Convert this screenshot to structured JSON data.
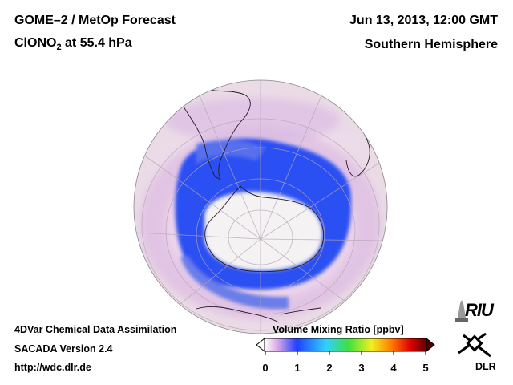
{
  "header": {
    "title_line1": "GOME–2 / MetOp Forecast",
    "species_prefix": "ClONO",
    "species_subscript": "2",
    "species_suffix": " at 55.4 hPa",
    "date": "Jun 13, 2013, 12:00 GMT",
    "region": "Southern Hemisphere"
  },
  "footer": {
    "line1": "4DVar Chemical Data Assimilation",
    "line2": "SACADA Version 2.4",
    "line3": "http://wdc.dlr.de"
  },
  "colorbar": {
    "title": "Volume Mixing Ratio [ppbv]",
    "ticks": [
      "0",
      "1",
      "2",
      "3",
      "4",
      "5"
    ],
    "colors": [
      "#ffffff",
      "#d9a8e6",
      "#2040ff",
      "#30d0ff",
      "#40e040",
      "#f0f020",
      "#ff8000",
      "#e00000",
      "#600000"
    ]
  },
  "map": {
    "projection": "orthographic",
    "hemisphere": "south",
    "colors": {
      "background": "#f0e3f3",
      "low": "#f5f2f2",
      "band": "#2850f0",
      "band_light": "#8090ee",
      "mid": "#d9b4e4"
    }
  },
  "logos": {
    "riu": "RIU",
    "dlr": "DLR"
  }
}
